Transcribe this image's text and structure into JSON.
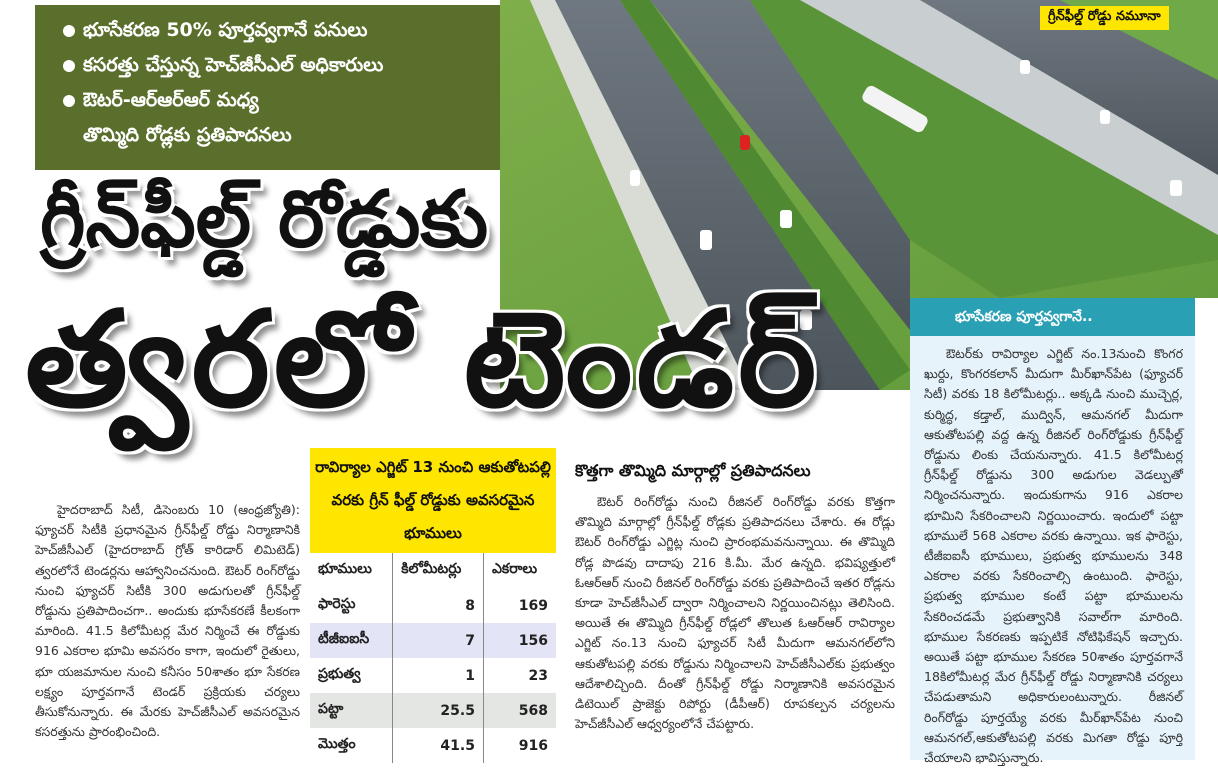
{
  "highlights": [
    "భూసేకరణ 50% పూర్తవ్వగానే పనులు",
    "కసరత్తు చేస్తున్న హెచ్‌జీసీఎల్ అధికారులు",
    "ఔటర్-ఆర్ఆర్ఆర్ మధ్య",
    "తొమ్మిది రోడ్లకు ప్రతిపాదనలు"
  ],
  "photo_caption": "గ్రీన్‌ఫీల్డ్ రోడ్డు నమూనా",
  "headline": {
    "line1": "గ్రీన్‌ఫీల్డ్ రోడ్డుకు",
    "line2": "త్వరలో టెండర్"
  },
  "lead_article": "హైదరాబాద్ సిటీ, డిసెంబరు 10 (ఆంధ్రజ్యోతి): ఫ్యూచర్ సిటీకి ప్రధానమైన గ్రీన్‌ఫీల్డ్ రోడ్డు నిర్మాణానికి హెచ్‌జీసీఎల్ (హైదరాబాద్ గ్రోత్ కారిడార్ లిమిటెడ్) త్వరలోనే టెండర్లను ఆహ్వానించనుంది. ఔటర్ రింగ్‌రోడ్డు నుంచి ఫ్యూచర్ సిటీకి 300 అడుగులతో గ్రీన్‌ఫీల్డ్ రోడ్డును ప్రతిపాదించగా.. అందుకు భూసేకరణే కీలకంగా మారింది. 41.5 కిలోమీటర్ల మేర నిర్మించే ఈ రోడ్డుకు 916 ఎకరాల భూమి అవసరం కాగా, ఇందులో రైతులు, భూ యజమానుల నుంచి కనీసం 50శాతం భూ సేకరణ లక్ష్యం పూర్తవగానే టెండర్ ప్రక్రియకు చర్యలు తీసుకోనున్నారు. ఈ మేరకు హెచ్‌జీసీఎల్ అవసరమైన కసరత్తును ప్రారంభించింది.",
  "land_table": {
    "title": "రావిర్యాల ఎగ్జిట్ 13 నుంచి ఆకుతోటపల్లి వరకు గ్రీన్ ఫీల్డ్ రోడ్డుకు అవసరమైన భూములు",
    "columns": [
      "భూములు",
      "కిలోమీటర్లు",
      "ఎకరాలు"
    ],
    "rows": [
      [
        "ఫారెస్టు",
        "8",
        "169"
      ],
      [
        "టీజీఐఐసీ",
        "7",
        "156"
      ],
      [
        "ప్రభుత్వ",
        "1",
        "23"
      ],
      [
        "పట్టా",
        "25.5",
        "568"
      ],
      [
        "మొత్తం",
        "41.5",
        "916"
      ]
    ]
  },
  "middle_article": {
    "heading": "కొత్తగా తొమ్మిది మార్గాల్లో ప్రతిపాదనలు",
    "body": "ఔటర్ రింగ్‌రోడ్డు నుంచి రీజినల్ రింగ్‌రోడ్డు వరకు కొత్తగా తొమ్మిది మార్గాల్లో గ్రీన్‌ఫీల్డ్ రోడ్లకు ప్రతిపాదనలు చేశారు. ఈ రోడ్లు ఔటర్ రింగ్‌రోడ్డు ఎగ్జిట్ల నుంచి ప్రారంభమవనున్నాయి. ఈ తొమ్మిది రోడ్ల పొడవు దాదాపు 216 కి.మీ. మేర ఉన్నది. భవిష్యత్తులో ఓఆర్ఆర్ నుంచి రీజినల్ రింగ్‌రోడ్డు వరకు ప్రతిపాదించే ఇతర రోడ్లను కూడా హెచ్‌జీసీఎల్ ద్వారా నిర్మించాలని నిర్ణయించినట్లు తెలిసింది. అయితే ఈ తొమ్మిది గ్రీన్‌ఫీల్డ్ రోడ్లలో తొలుత ఓఆర్ఆర్ రావిర్యాల ఎగ్జిట్ నం.13 నుంచి ఫ్యూచర్ సిటీ మీదుగా ఆమనగల్‌లోని ఆకుతోటపల్లి వరకు రోడ్డును నిర్మించాలని హెచ్‌జీసీఎల్‌కు ప్రభుత్వం ఆదేశాలిచ్చింది. దీంతో గ్రీన్‌ఫీల్డ్ రోడ్డు నిర్మాణానికి అవసరమైన డిటెయిల్ ప్రాజెక్టు రిపోర్టు (డీపీఆర్) రూపకల్పన చర్యలను హెచ్‌జీసీఎల్ ఆధ్వర్యంలోనే చేపట్టారు."
  },
  "side_box": {
    "heading": "భూసేకరణ పూర్తవ్వగానే..",
    "body": "ఔటర్‌కు రావిర్యాల ఎగ్జిట్ నం.13నుంచి కొంగర ఖుర్దు, కొంగరకలాన్ మీదుగా మీర్‌ఖాన్‌పేట (ఫ్యూచర్ సిటీ) వరకు 18 కిలోమీటర్లు.. అక్కడి నుంచి ముచ్చెర్ల, కుర్మిద్ధ, కడ్తాల్, ముద్విన్, ఆమనగల్ మీదుగా ఆకుతోటపల్లి వద్ద ఉన్న రీజినల్ రింగ్‌రోడ్డుకు గ్రీన్‌ఫీల్డ్ రోడ్డును లింకు చేయనున్నారు. 41.5 కిలోమీటర్ల గ్రీన్‌ఫీల్డ్ రోడ్డును 300 అడుగుల వెడల్పుతో నిర్మించనున్నారు. ఇందుకుగాను 916 ఎకరాల భూమిని సేకరించాలని నిర్ణయించారు. ఇందులో పట్టా భూములే 568 ఎకరాల వరకు ఉన్నాయి. ఇక ఫారెస్టు, టీజీఐఐసీ భూములు, ప్రభుత్వ భూములను 348 ఎకరాల వరకు సేకరించాల్సి ఉంటుంది. ఫారెస్టు, ప్రభుత్వ భూముల కంటే పట్టా భూములను సేకరించడమే ప్రభుత్వానికి సవాల్‌గా మారింది. భూముల సేకరణకు ఇప్పటికే నోటిఫికేషన్ ఇచ్చారు. అయితే పట్టా భూముల సేకరణ 50శాతం పూర్తవగానే 18కిలోమీటర్ల మేర గ్రీన్‌ఫీల్డ్ రోడ్డు నిర్మాణానికి చర్యలు చేపడుతామని అధికారులంటున్నారు. రీజినల్ రింగ్‌రోడ్డు పూర్తయ్యే వరకు మీర్‌ఖాన్‌పేట నుంచి ఆమనగల్,ఆకుతోటపల్లి వరకు మిగతా రోడ్డు పూర్తి చేయాలని భావిస్తున్నారు."
  },
  "colors": {
    "highlight_box": "#5b6f2d",
    "table_header": "#ffe600",
    "side_box_header": "#2aa0b5",
    "side_box_bg": "#e6f3fa"
  }
}
